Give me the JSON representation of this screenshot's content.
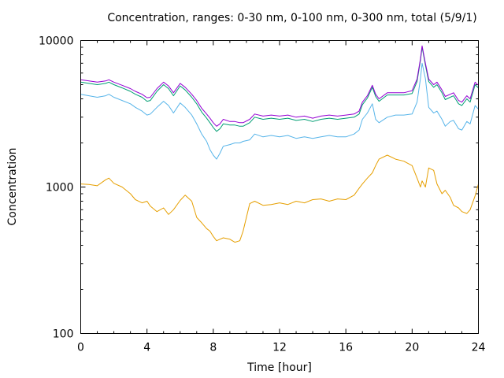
{
  "chart_data": {
    "type": "line",
    "title": "Concentration, ranges: 0-30 nm, 0-100 nm, 0-300 nm, total (5/9/1)",
    "xlabel": "Time [hour]",
    "ylabel": "Concentration",
    "xlim": [
      0,
      24
    ],
    "ylim": [
      100,
      10000
    ],
    "yscale": "log",
    "grid": false,
    "legend": "none",
    "x_ticks": [
      "0",
      "4",
      "8",
      "12",
      "16",
      "20",
      "24"
    ],
    "x_tick_values": [
      0,
      4,
      8,
      12,
      16,
      20,
      24
    ],
    "y_ticks": [
      "100",
      "1000",
      "10000"
    ],
    "y_tick_values": [
      100,
      1000,
      10000
    ],
    "x": [
      0,
      0.5,
      1,
      1.5,
      1.7,
      2,
      2.5,
      3,
      3.3,
      3.7,
      4,
      4.2,
      4.6,
      5,
      5.3,
      5.6,
      6,
      6.3,
      6.7,
      7,
      7.3,
      7.6,
      7.8,
      8,
      8.2,
      8.4,
      8.6,
      9,
      9.3,
      9.6,
      9.8,
      10.2,
      10.5,
      11,
      11.5,
      12,
      12.5,
      13,
      13.5,
      14,
      14.5,
      15,
      15.5,
      16,
      16.5,
      16.8,
      17,
      17.3,
      17.6,
      17.8,
      18,
      18.5,
      19,
      19.5,
      20,
      20.3,
      20.5,
      20.6,
      20.8,
      21,
      21.3,
      21.5,
      21.8,
      22,
      22.3,
      22.5,
      22.8,
      23,
      23.3,
      23.5,
      23.8,
      24
    ],
    "series": [
      {
        "name": "total",
        "color": "#9400d3",
        "values": [
          5400,
          5300,
          5200,
          5300,
          5400,
          5200,
          4950,
          4700,
          4500,
          4300,
          4070,
          4100,
          4700,
          5200,
          4900,
          4400,
          5100,
          4800,
          4300,
          3900,
          3450,
          3150,
          2950,
          2750,
          2600,
          2700,
          2900,
          2800,
          2800,
          2750,
          2750,
          2900,
          3150,
          3050,
          3100,
          3050,
          3100,
          3000,
          3050,
          2950,
          3050,
          3100,
          3050,
          3100,
          3150,
          3300,
          3800,
          4200,
          4950,
          4300,
          4000,
          4400,
          4400,
          4400,
          4550,
          5450,
          7500,
          9200,
          7000,
          5450,
          5000,
          5200,
          4600,
          4150,
          4300,
          4400,
          3900,
          3800,
          4200,
          4000,
          5200,
          4950
        ]
      },
      {
        "name": "0-300 nm",
        "color": "#009e73",
        "values": [
          5200,
          5100,
          5000,
          5100,
          5200,
          5000,
          4750,
          4500,
          4300,
          4100,
          3850,
          3900,
          4500,
          5000,
          4700,
          4200,
          4900,
          4600,
          4100,
          3700,
          3250,
          2950,
          2750,
          2550,
          2400,
          2500,
          2700,
          2650,
          2650,
          2600,
          2600,
          2750,
          3000,
          2900,
          2950,
          2900,
          2950,
          2850,
          2900,
          2800,
          2900,
          2950,
          2900,
          2950,
          3000,
          3150,
          3650,
          4050,
          4800,
          4150,
          3850,
          4250,
          4250,
          4250,
          4350,
          5250,
          7300,
          9000,
          6800,
          5250,
          4800,
          5000,
          4400,
          3950,
          4100,
          4200,
          3700,
          3600,
          4000,
          3800,
          5000,
          4750
        ]
      },
      {
        "name": "0-100 nm",
        "color": "#56b4e9",
        "values": [
          4300,
          4200,
          4100,
          4200,
          4300,
          4100,
          3900,
          3700,
          3500,
          3300,
          3100,
          3150,
          3500,
          3850,
          3600,
          3200,
          3750,
          3500,
          3100,
          2700,
          2300,
          2050,
          1800,
          1650,
          1550,
          1700,
          1900,
          1950,
          2000,
          2000,
          2050,
          2100,
          2300,
          2200,
          2250,
          2200,
          2250,
          2150,
          2200,
          2150,
          2200,
          2250,
          2200,
          2200,
          2300,
          2450,
          2900,
          3200,
          3700,
          2900,
          2750,
          3000,
          3100,
          3100,
          3150,
          3800,
          5500,
          7000,
          5500,
          3500,
          3200,
          3300,
          2900,
          2600,
          2800,
          2850,
          2500,
          2450,
          2800,
          2700,
          3600,
          3400
        ]
      },
      {
        "name": "0-30 nm",
        "color": "#e69f00",
        "values": [
          1050,
          1040,
          1020,
          1120,
          1150,
          1060,
          1000,
          900,
          820,
          780,
          800,
          740,
          680,
          720,
          650,
          700,
          810,
          880,
          800,
          620,
          570,
          520,
          500,
          460,
          430,
          440,
          450,
          440,
          420,
          430,
          500,
          770,
          800,
          750,
          760,
          780,
          760,
          800,
          780,
          820,
          830,
          800,
          830,
          820,
          880,
          980,
          1050,
          1150,
          1250,
          1400,
          1550,
          1650,
          1550,
          1500,
          1400,
          1150,
          1000,
          1100,
          1000,
          1350,
          1300,
          1050,
          900,
          950,
          850,
          750,
          720,
          680,
          660,
          700,
          870,
          1050
        ]
      }
    ]
  }
}
